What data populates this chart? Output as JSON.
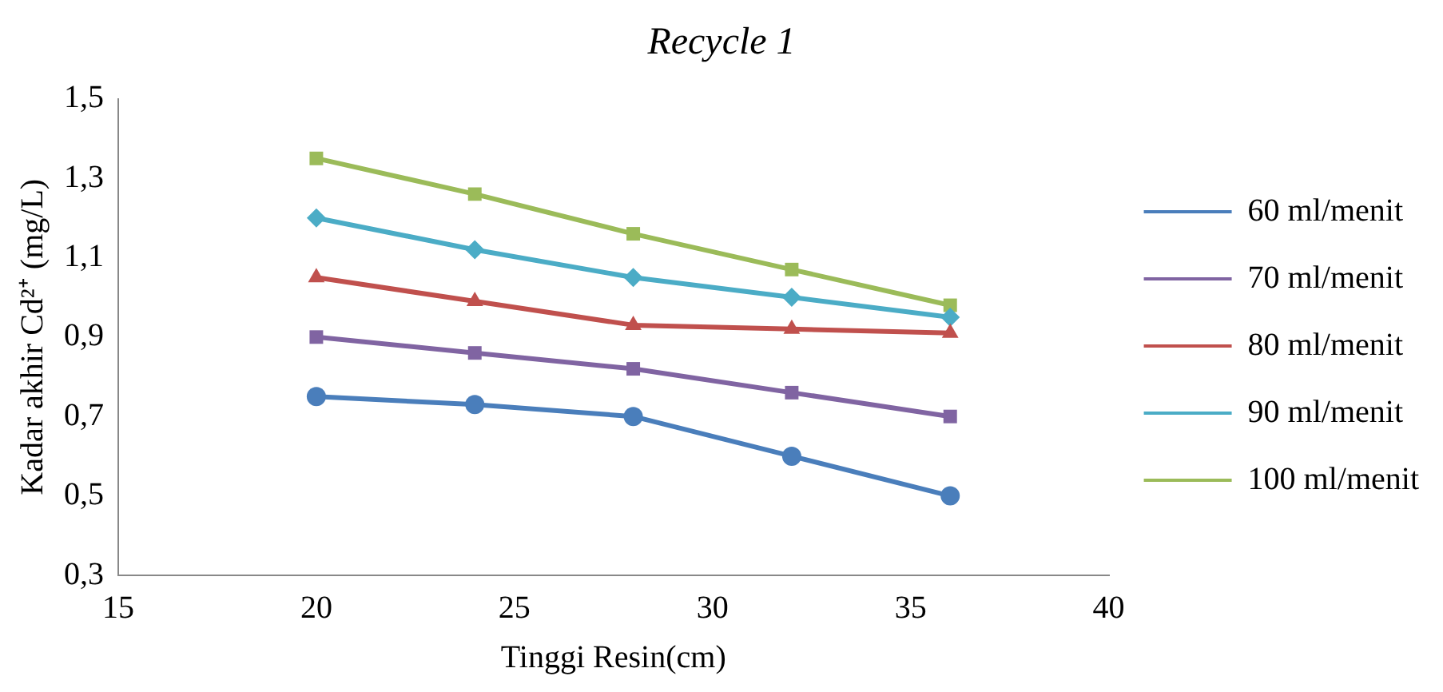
{
  "chart_data": {
    "type": "line",
    "title": "Recycle 1",
    "xlabel": "Tinggi Resin(cm)",
    "ylabel": "Kadar akhir Cd²⁺ (mg/L)",
    "x": [
      20,
      24,
      28,
      32,
      36
    ],
    "series": [
      {
        "name": "60 ml/menit",
        "color": "#4a7ebb",
        "marker": "circle",
        "values": [
          0.75,
          0.73,
          0.7,
          0.6,
          0.5
        ]
      },
      {
        "name": "70 ml/menit",
        "color": "#8064a2",
        "marker": "square",
        "values": [
          0.9,
          0.86,
          0.82,
          0.76,
          0.7
        ]
      },
      {
        "name": "80 ml/menit",
        "color": "#c0504d",
        "marker": "triangle",
        "values": [
          1.05,
          0.99,
          0.93,
          0.92,
          0.91
        ]
      },
      {
        "name": "90 ml/menit",
        "color": "#4bacc6",
        "marker": "diamond",
        "values": [
          1.2,
          1.12,
          1.05,
          1.0,
          0.95
        ]
      },
      {
        "name": "100 ml/menit",
        "color": "#9bbb59",
        "marker": "square",
        "values": [
          1.35,
          1.26,
          1.16,
          1.07,
          0.98
        ]
      }
    ],
    "xlim": [
      15,
      40
    ],
    "xticks": [
      15,
      20,
      25,
      30,
      35,
      40
    ],
    "ylim": [
      0.3,
      1.5
    ],
    "yticks": [
      {
        "value": 0.3,
        "label": "0,3"
      },
      {
        "value": 0.5,
        "label": "0,5"
      },
      {
        "value": 0.7,
        "label": "0,7"
      },
      {
        "value": 0.9,
        "label": "0,9"
      },
      {
        "value": 1.1,
        "label": "1,1"
      },
      {
        "value": 1.3,
        "label": "1,3"
      },
      {
        "value": 1.5,
        "label": "1,5"
      }
    ],
    "grid": false,
    "legend": "right",
    "line_style": "solid"
  }
}
